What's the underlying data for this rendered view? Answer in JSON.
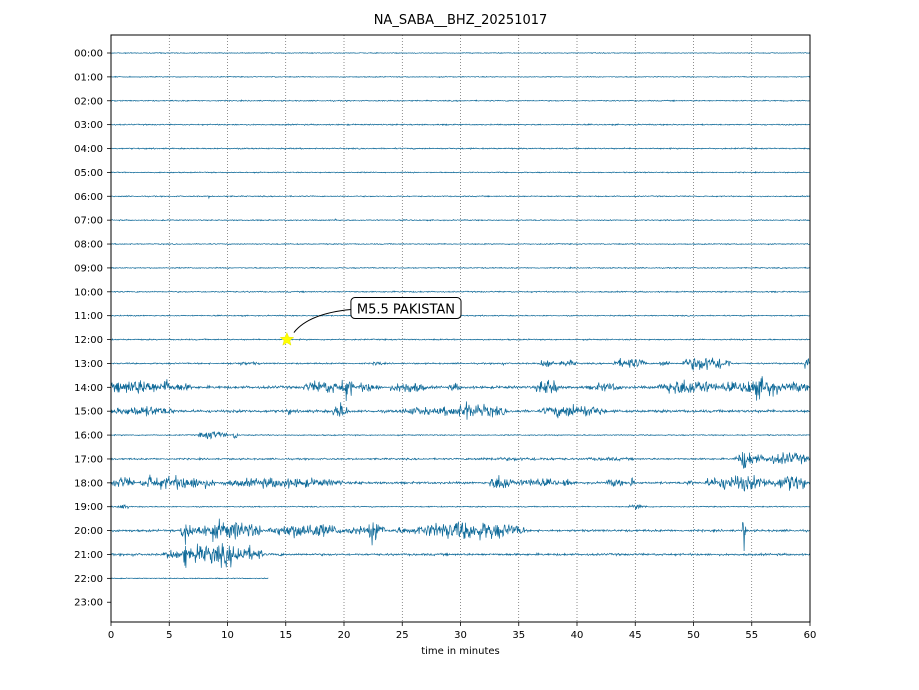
{
  "chart_data": {
    "type": "line",
    "title": "NA_SABA__BHZ_20251017",
    "xlabel": "time in minutes",
    "ylabel": "",
    "xlim": [
      0,
      60
    ],
    "x_ticks": [
      0,
      5,
      10,
      15,
      20,
      25,
      30,
      35,
      40,
      45,
      50,
      55,
      60
    ],
    "y_tick_labels": [
      "00:00",
      "01:00",
      "02:00",
      "03:00",
      "04:00",
      "05:00",
      "06:00",
      "07:00",
      "08:00",
      "09:00",
      "10:00",
      "11:00",
      "12:00",
      "13:00",
      "14:00",
      "15:00",
      "16:00",
      "17:00",
      "18:00",
      "19:00",
      "20:00",
      "21:00",
      "22:00",
      "23:00"
    ],
    "trace_color": "#0f6a99",
    "grid": {
      "vertical": true,
      "style": "dotted"
    },
    "trace_end_minutes": {
      "22:00": 13.5,
      "23:00": 0
    },
    "rows": [
      {
        "hour": "00:00",
        "base": 0.5,
        "bursts": []
      },
      {
        "hour": "01:00",
        "base": 0.5,
        "bursts": []
      },
      {
        "hour": "02:00",
        "base": 0.6,
        "bursts": []
      },
      {
        "hour": "03:00",
        "base": 0.7,
        "bursts": []
      },
      {
        "hour": "04:00",
        "base": 0.7,
        "bursts": []
      },
      {
        "hour": "05:00",
        "base": 0.6,
        "bursts": []
      },
      {
        "hour": "06:00",
        "base": 0.6,
        "bursts": [
          {
            "start": 8.3,
            "end": 8.5,
            "amp": 2
          }
        ]
      },
      {
        "hour": "07:00",
        "base": 0.6,
        "bursts": [
          {
            "start": 19.2,
            "end": 19.4,
            "amp": 3
          }
        ]
      },
      {
        "hour": "08:00",
        "base": 0.6,
        "bursts": []
      },
      {
        "hour": "09:00",
        "base": 0.6,
        "bursts": []
      },
      {
        "hour": "10:00",
        "base": 0.7,
        "bursts": []
      },
      {
        "hour": "11:00",
        "base": 0.6,
        "bursts": []
      },
      {
        "hour": "12:00",
        "base": 0.7,
        "bursts": []
      },
      {
        "hour": "13:00",
        "base": 0.8,
        "bursts": [
          {
            "start": 10,
            "end": 13,
            "amp": 2
          },
          {
            "start": 22.5,
            "end": 23.3,
            "amp": 3
          },
          {
            "start": 33.3,
            "end": 33.8,
            "amp": 3
          },
          {
            "start": 36.8,
            "end": 38,
            "amp": 6
          },
          {
            "start": 38.5,
            "end": 40,
            "amp": 4
          },
          {
            "start": 43,
            "end": 46,
            "amp": 6
          },
          {
            "start": 47,
            "end": 48,
            "amp": 4
          },
          {
            "start": 49,
            "end": 53.3,
            "amp": 9
          },
          {
            "start": 59.5,
            "end": 60,
            "amp": 8
          }
        ]
      },
      {
        "hour": "14:00",
        "base": 1.5,
        "bursts": [
          {
            "start": 0,
            "end": 4.5,
            "amp": 9
          },
          {
            "start": 4.5,
            "end": 5,
            "amp": 14
          },
          {
            "start": 5,
            "end": 7,
            "amp": 5
          },
          {
            "start": 16.5,
            "end": 20,
            "amp": 8
          },
          {
            "start": 19.7,
            "end": 20.8,
            "amp": 14
          },
          {
            "start": 21,
            "end": 23,
            "amp": 6
          },
          {
            "start": 24,
            "end": 27,
            "amp": 7
          },
          {
            "start": 29,
            "end": 30,
            "amp": 5
          },
          {
            "start": 36.5,
            "end": 38.5,
            "amp": 10
          },
          {
            "start": 41,
            "end": 44,
            "amp": 5
          },
          {
            "start": 47,
            "end": 52,
            "amp": 10
          },
          {
            "start": 52,
            "end": 54,
            "amp": 6
          },
          {
            "start": 54,
            "end": 57.5,
            "amp": 12
          },
          {
            "start": 57.5,
            "end": 60,
            "amp": 6
          }
        ]
      },
      {
        "hour": "15:00",
        "base": 1.5,
        "bursts": [
          {
            "start": 0,
            "end": 5.5,
            "amp": 6
          },
          {
            "start": 15,
            "end": 15.6,
            "amp": 4
          },
          {
            "start": 19,
            "end": 20.3,
            "amp": 10
          },
          {
            "start": 24.8,
            "end": 28,
            "amp": 5
          },
          {
            "start": 28,
            "end": 34,
            "amp": 8
          },
          {
            "start": 30.3,
            "end": 30.8,
            "amp": 13
          },
          {
            "start": 37,
            "end": 42.5,
            "amp": 8
          }
        ]
      },
      {
        "hour": "16:00",
        "base": 0.6,
        "bursts": [
          {
            "start": 7.5,
            "end": 10,
            "amp": 5
          },
          {
            "start": 10.5,
            "end": 10.9,
            "amp": 6
          }
        ]
      },
      {
        "hour": "17:00",
        "base": 0.9,
        "bursts": [
          {
            "start": 30,
            "end": 40,
            "amp": 2
          },
          {
            "start": 40,
            "end": 45,
            "amp": 2
          },
          {
            "start": 53.5,
            "end": 56,
            "amp": 8
          },
          {
            "start": 54.2,
            "end": 54.5,
            "amp": 20
          },
          {
            "start": 56,
            "end": 60,
            "amp": 7
          }
        ]
      },
      {
        "hour": "18:00",
        "base": 1.2,
        "bursts": [
          {
            "start": 0,
            "end": 2,
            "amp": 7
          },
          {
            "start": 2.5,
            "end": 9,
            "amp": 8
          },
          {
            "start": 3.2,
            "end": 3.5,
            "amp": 14
          },
          {
            "start": 9.5,
            "end": 20,
            "amp": 6
          },
          {
            "start": 21,
            "end": 21.6,
            "amp": 3
          },
          {
            "start": 32.5,
            "end": 34.5,
            "amp": 10
          },
          {
            "start": 34.5,
            "end": 38.5,
            "amp": 5
          },
          {
            "start": 38.8,
            "end": 39.4,
            "amp": 8
          },
          {
            "start": 42.5,
            "end": 44,
            "amp": 5
          },
          {
            "start": 44.5,
            "end": 45,
            "amp": 6
          },
          {
            "start": 49.5,
            "end": 50,
            "amp": 5
          },
          {
            "start": 51,
            "end": 57,
            "amp": 9
          },
          {
            "start": 57,
            "end": 59.7,
            "amp": 10
          }
        ]
      },
      {
        "hour": "19:00",
        "base": 0.6,
        "bursts": [
          {
            "start": 0.5,
            "end": 1.5,
            "amp": 3
          },
          {
            "start": 44.5,
            "end": 46,
            "amp": 3
          }
        ]
      },
      {
        "hour": "20:00",
        "base": 1.2,
        "bursts": [
          {
            "start": 6,
            "end": 7,
            "amp": 16
          },
          {
            "start": 7,
            "end": 13,
            "amp": 11
          },
          {
            "start": 13.5,
            "end": 20,
            "amp": 9
          },
          {
            "start": 20,
            "end": 22,
            "amp": 5
          },
          {
            "start": 22,
            "end": 23.5,
            "amp": 15
          },
          {
            "start": 24,
            "end": 26,
            "amp": 4
          },
          {
            "start": 26,
            "end": 35.5,
            "amp": 11
          },
          {
            "start": 54.2,
            "end": 54.5,
            "amp": 22
          }
        ]
      },
      {
        "hour": "21:00",
        "base": 1.2,
        "bursts": [
          {
            "start": 1.5,
            "end": 2,
            "amp": 3
          },
          {
            "start": 4.5,
            "end": 6.5,
            "amp": 6
          },
          {
            "start": 6.2,
            "end": 6.5,
            "amp": 22
          },
          {
            "start": 6.5,
            "end": 13,
            "amp": 12
          },
          {
            "start": 7.2,
            "end": 7.6,
            "amp": 18
          },
          {
            "start": 14,
            "end": 15,
            "amp": 2
          }
        ]
      },
      {
        "hour": "22:00",
        "base": 0.5,
        "bursts": []
      },
      {
        "hour": "23:00",
        "base": 0,
        "bursts": []
      }
    ],
    "annotations": [
      {
        "text": "M5.5 PAKISTAN",
        "x_minutes": 15.1,
        "row": "12:00",
        "marker": "star",
        "marker_color": "#ffff00"
      }
    ]
  }
}
